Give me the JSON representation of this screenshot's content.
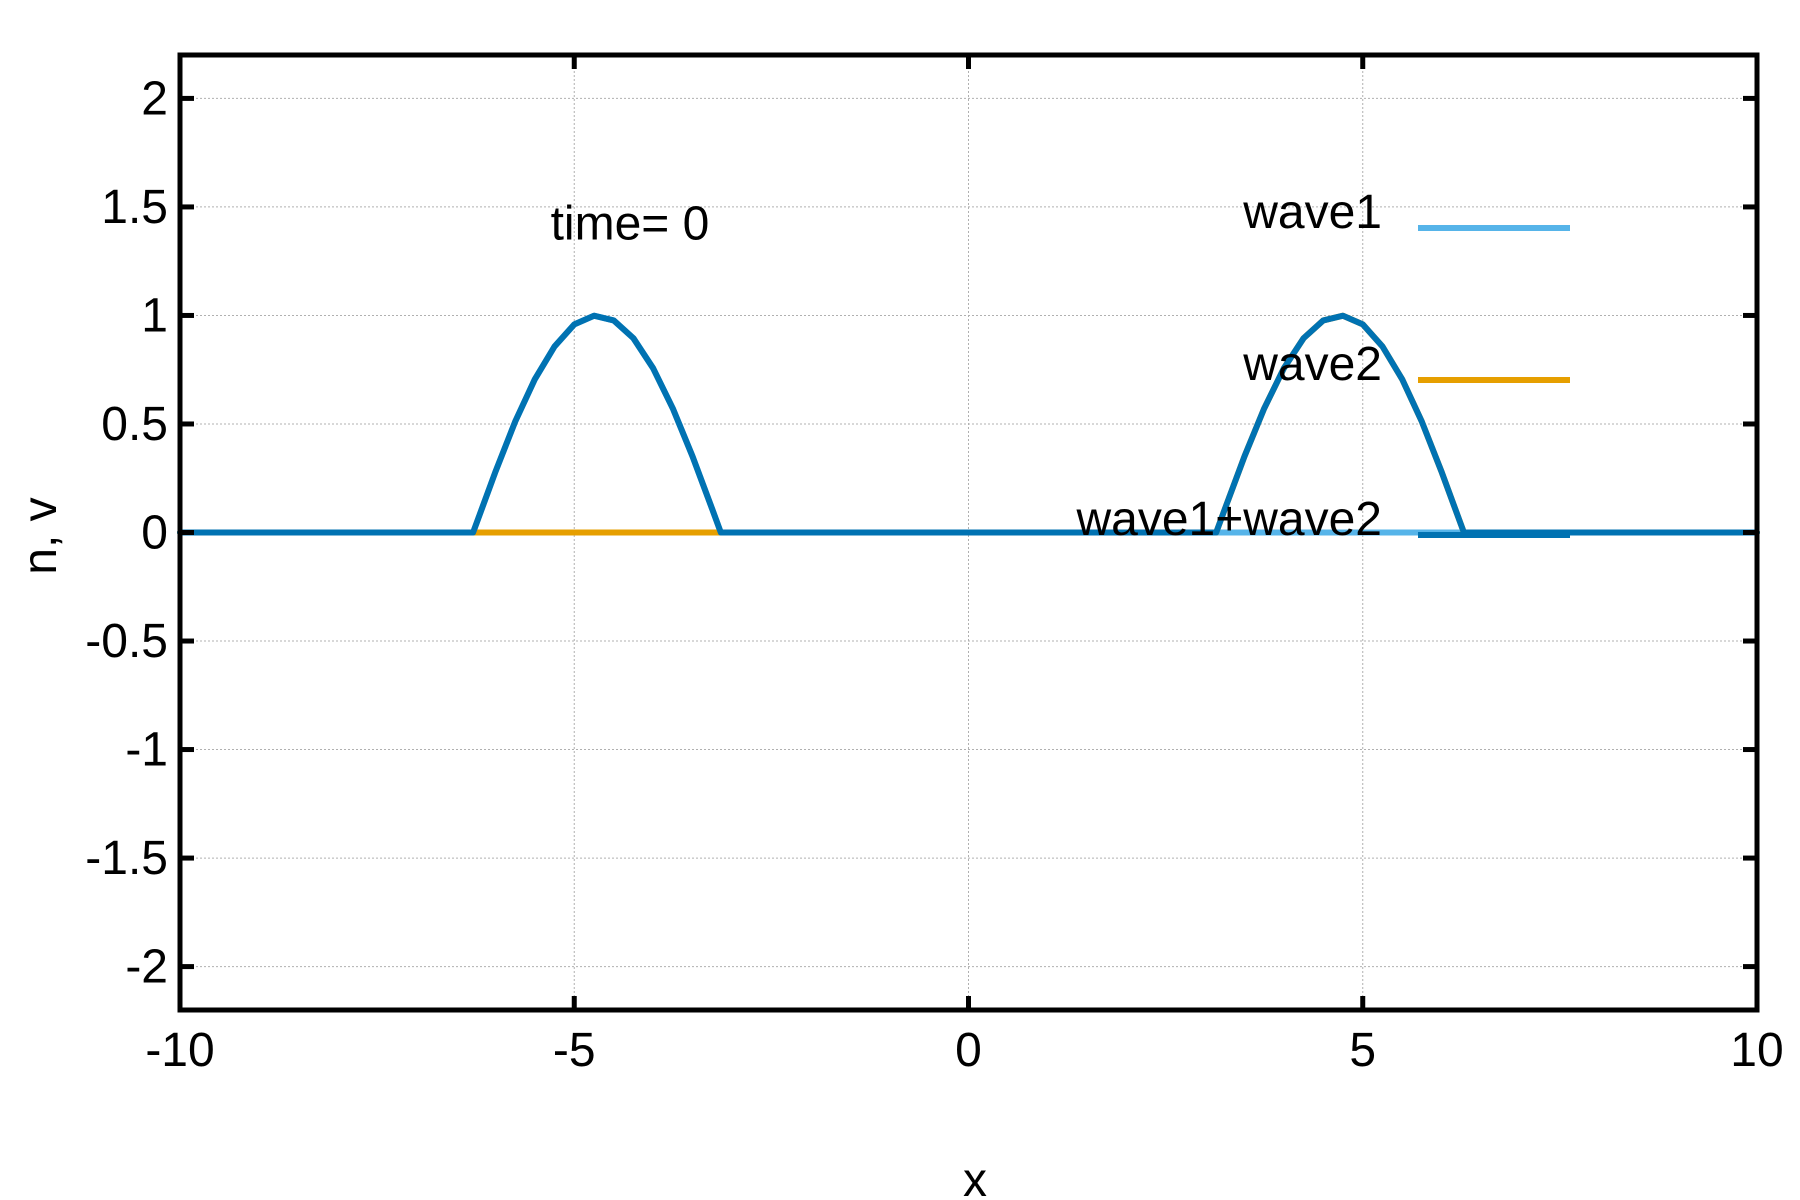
{
  "chart_data": {
    "type": "line",
    "title": "",
    "xlabel": "x",
    "ylabel": "n, v",
    "xlim": [
      -10,
      10
    ],
    "ylim": [
      -2.2,
      2.2
    ],
    "grid": true,
    "x_ticks": [
      -10,
      -5,
      0,
      5,
      10
    ],
    "x_tick_labels": [
      "-10",
      "-5",
      "0",
      "5",
      "10"
    ],
    "y_ticks": [
      2,
      1.5,
      1,
      0.5,
      0,
      -0.5,
      -1,
      -1.5,
      -2
    ],
    "y_tick_labels": [
      "2",
      "1.5",
      "1",
      "0.5",
      "0",
      "-0.5",
      "-1",
      "-1.5",
      "-2"
    ],
    "annotation": {
      "text": "time=  0",
      "x": -5.3,
      "y": 1.35
    },
    "legend_position": "top-right",
    "series": [
      {
        "name": "wave1",
        "color": "#56b4e9",
        "x": [
          -10,
          -6.283,
          -6.0,
          -5.75,
          -5.5,
          -5.25,
          -5.0,
          -4.75,
          -4.5,
          -4.25,
          -4.0,
          -3.75,
          -3.5,
          -3.25,
          -3.142,
          10
        ],
        "y": [
          0,
          0,
          0.279,
          0.51,
          0.706,
          0.857,
          0.959,
          0.999,
          0.977,
          0.895,
          0.757,
          0.572,
          0.351,
          0.108,
          0,
          0
        ]
      },
      {
        "name": "wave2",
        "color": "#e69f00",
        "x": [
          -10,
          3.142,
          3.25,
          3.5,
          3.75,
          4.0,
          4.25,
          4.5,
          4.75,
          5.0,
          5.25,
          5.5,
          5.75,
          6.0,
          6.283,
          10
        ],
        "y": [
          0,
          0,
          0.108,
          0.351,
          0.572,
          0.757,
          0.895,
          0.977,
          0.999,
          0.959,
          0.857,
          0.706,
          0.51,
          0.279,
          0,
          0
        ]
      },
      {
        "name": "wave1+wave2",
        "color": "#0072b2",
        "x": [
          -10,
          -6.283,
          -6.0,
          -5.75,
          -5.5,
          -5.25,
          -5.0,
          -4.75,
          -4.5,
          -4.25,
          -4.0,
          -3.75,
          -3.5,
          -3.25,
          -3.142,
          3.142,
          3.25,
          3.5,
          3.75,
          4.0,
          4.25,
          4.5,
          4.75,
          5.0,
          5.25,
          5.5,
          5.75,
          6.0,
          6.283,
          10
        ],
        "y": [
          0,
          0,
          0.279,
          0.51,
          0.706,
          0.857,
          0.959,
          0.999,
          0.977,
          0.895,
          0.757,
          0.572,
          0.351,
          0.108,
          0,
          0,
          0.108,
          0.351,
          0.572,
          0.757,
          0.895,
          0.977,
          0.999,
          0.959,
          0.857,
          0.706,
          0.51,
          0.279,
          0,
          0
        ]
      }
    ]
  }
}
